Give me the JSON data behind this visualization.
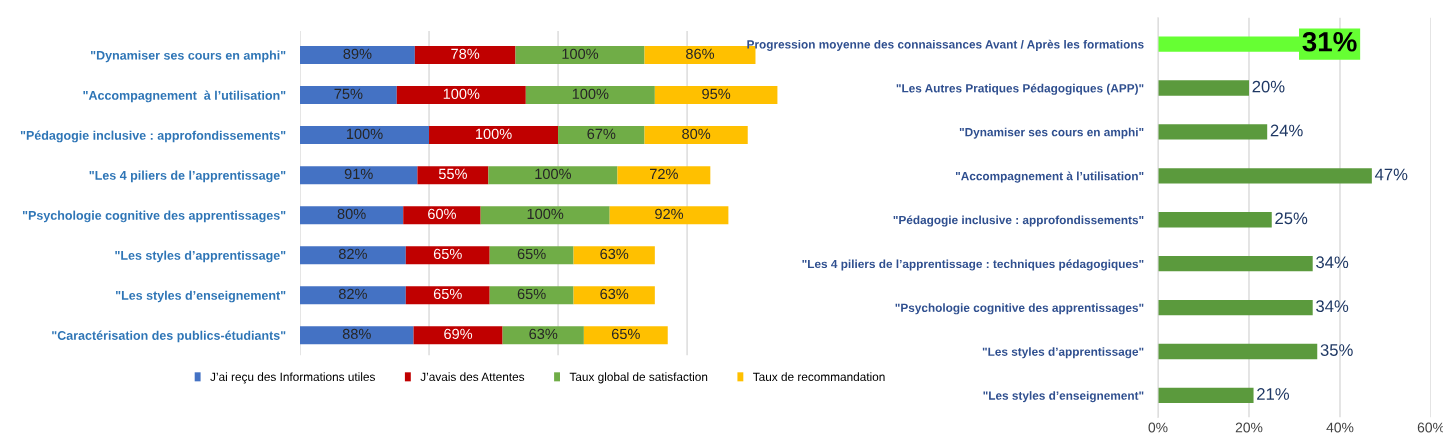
{
  "chart_data": [
    {
      "type": "bar",
      "orientation": "horizontal",
      "stacked": true,
      "categories": [
        "\"Dynamiser ses cours en amphi\"",
        "\"Accompagnement  à l’utilisation\"",
        "\"Pédagogie inclusive : approfondissements\"",
        "\"Les 4 piliers de l’apprentissage\"",
        "\"Psychologie cognitive des apprentissages\"",
        "\"Les styles d’apprentissage\"",
        "\"Les styles d’enseignement\"",
        "\"Caractérisation des publics-étudiants\""
      ],
      "series": [
        {
          "name": "J’ai reçu des Informations utiles",
          "color": "#4472c4",
          "values": [
            89,
            75,
            100,
            91,
            80,
            82,
            82,
            88
          ],
          "value_labels": [
            "89%",
            "75%",
            "100%",
            "91%",
            "80%",
            "82%",
            "82%",
            "88%"
          ]
        },
        {
          "name": "J’avais des Attentes",
          "color": "#c00000",
          "values": [
            78,
            100,
            100,
            55,
            60,
            65,
            65,
            69
          ],
          "value_labels": [
            "78%",
            "100%",
            "100%",
            "55%",
            "60%",
            "65%",
            "65%",
            "69%"
          ]
        },
        {
          "name": "Taux global de satisfaction",
          "color": "#70ad47",
          "values": [
            100,
            100,
            67,
            100,
            100,
            65,
            65,
            63
          ],
          "value_labels": [
            "100%",
            "100%",
            "67%",
            "100%",
            "100%",
            "65%",
            "65%",
            "63%"
          ]
        },
        {
          "name": "Taux de recommandation",
          "color": "#ffc000",
          "values": [
            86,
            95,
            80,
            72,
            92,
            63,
            63,
            65
          ],
          "value_labels": [
            "86%",
            "95%",
            "80%",
            "72%",
            "92%",
            "63%",
            "63%",
            "65%"
          ]
        }
      ],
      "xlim": [
        0,
        372
      ],
      "xticks": [
        {
          "value": 0,
          "label": null
        },
        {
          "value": 100,
          "label": null
        },
        {
          "value": 200,
          "label": null
        },
        {
          "value": 300,
          "label": null
        }
      ],
      "tick_labels": false,
      "grid": "x",
      "legend": "bottom"
    },
    {
      "type": "bar",
      "orientation": "horizontal",
      "categories": [
        "Progression moyenne des connaissances Avant / Après les formations",
        "\"Les Autres Pratiques Pédagogiques (APP)\"",
        "\"Dynamiser ses cours en amphi\"",
        "\"Accompagnement à l’utilisation\"",
        "\"Pédagogie inclusive : approfondissements\"",
        "\"Les 4 piliers de l’apprentissage : techniques pédagogiques\"",
        "\"Psychologie cognitive des apprentissages\"",
        "\"Les styles d’apprentissage\"",
        "\"Les styles d’enseignement\""
      ],
      "values": [
        31,
        20,
        24,
        47,
        25,
        34,
        34,
        35,
        21
      ],
      "value_labels": [
        "31%",
        "20%",
        "24%",
        "47%",
        "25%",
        "34%",
        "34%",
        "35%",
        "21%"
      ],
      "colors": [
        "#66ff33",
        "#5b9a3d",
        "#5b9a3d",
        "#5b9a3d",
        "#5b9a3d",
        "#5b9a3d",
        "#5b9a3d",
        "#5b9a3d",
        "#5b9a3d"
      ],
      "xlim": [
        0,
        60
      ],
      "xticks": [
        {
          "value": 0,
          "label": "0%"
        },
        {
          "value": 20,
          "label": "20%"
        },
        {
          "value": 40,
          "label": "40%"
        },
        {
          "value": 60,
          "label": "60%"
        }
      ],
      "tick_labels": "x",
      "grid": "x",
      "legend": false
    }
  ]
}
